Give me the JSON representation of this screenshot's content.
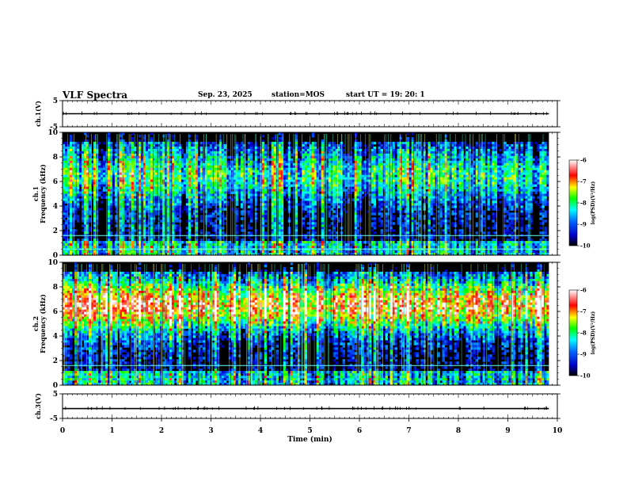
{
  "header": {
    "title": "VLF Spectra",
    "date": "Sep. 23, 2025",
    "station": "station=MOS",
    "start": "start  UT =   19: 20: 1"
  },
  "colors": {
    "background": "#000000",
    "colormap": [
      "#00008c",
      "#0000ff",
      "#0080ff",
      "#00ffff",
      "#00ff00",
      "#ffff00",
      "#ff0000",
      "#ffffff"
    ]
  },
  "chart_data": [
    {
      "type": "line",
      "name": "ch1-waveform",
      "ylabel": "ch.1(V)",
      "ylim": [
        -5,
        5
      ],
      "yticks": [
        "5",
        "-5"
      ],
      "baseline": 0,
      "x_range_min": [
        0,
        9.83
      ]
    },
    {
      "type": "heatmap",
      "name": "ch1-spectrogram",
      "ylabel_top": "ch.1",
      "ylabel": "Frequency (kHz)",
      "ylim": [
        0,
        10
      ],
      "yticks": [
        "0",
        "2",
        "4",
        "6",
        "8",
        "10"
      ],
      "xlim_min": [
        0,
        9.83
      ],
      "band_peak_khz": 6.5,
      "band_intensity": 0.45,
      "horizontal_lines_khz": [
        0.5,
        1.6
      ],
      "colorbar": {
        "label": "log(PSD)(V²/Hz)",
        "ticks": [
          "-6",
          "-7",
          "-8",
          "-9",
          "-10"
        ],
        "range": [
          -10,
          -6
        ]
      }
    },
    {
      "type": "heatmap",
      "name": "ch2-spectrogram",
      "ylabel_top": "ch.2",
      "ylabel": "Frequency (kHz)",
      "ylim": [
        0,
        10
      ],
      "yticks": [
        "0",
        "2",
        "4",
        "6",
        "8",
        "10"
      ],
      "xlim_min": [
        0,
        9.83
      ],
      "band_peak_khz": 6.5,
      "band_intensity": 0.8,
      "horizontal_lines_khz": [
        1.6
      ],
      "colorbar": {
        "label": "log(PSD)(V²/Hz)",
        "ticks": [
          "-6",
          "-7",
          "-8",
          "-9",
          "-10"
        ],
        "range": [
          -10,
          -6
        ]
      }
    },
    {
      "type": "line",
      "name": "ch3-waveform",
      "ylabel": "ch.3(V)",
      "ylim": [
        -5,
        5
      ],
      "yticks": [
        "5",
        "-5"
      ],
      "baseline": -1,
      "x_range_min": [
        0,
        9.83
      ]
    }
  ],
  "xaxis": {
    "label": "Time (min)",
    "xlim": [
      0,
      10
    ],
    "ticks": [
      "0",
      "1",
      "2",
      "3",
      "4",
      "5",
      "6",
      "7",
      "8",
      "9",
      "10"
    ]
  }
}
